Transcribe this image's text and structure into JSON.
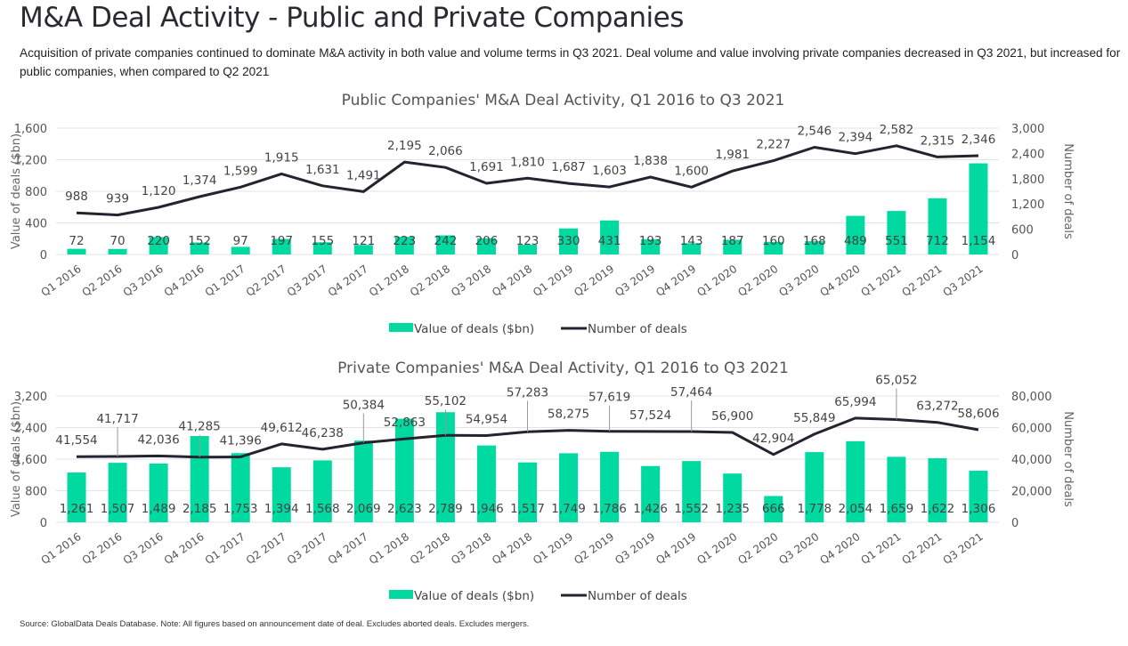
{
  "header": {
    "title": "M&A Deal Activity - Public and Private Companies",
    "subtitle": "Acquisition of private companies continued to dominate M&A activity in both value and volume terms in Q3 2021. Deal volume and value involving private companies decreased in Q3 2021, but increased for public companies, when compared to Q2 2021"
  },
  "source": "Source: GlobalData Deals Database. Note: All figures based on announcement date of deal. Excludes aborted deals. Excludes mergers.",
  "colors": {
    "bar": "#00D9A0",
    "line": "#24232F"
  },
  "chart_data": [
    {
      "type": "bar+line",
      "title": "Public Companies' M&A Deal Activity, Q1 2016 to Q3 2021",
      "categories": [
        "Q1 2016",
        "Q2 2016",
        "Q3 2016",
        "Q4 2016",
        "Q1 2017",
        "Q2 2017",
        "Q3 2017",
        "Q4 2017",
        "Q1 2018",
        "Q2 2018",
        "Q3 2018",
        "Q4 2018",
        "Q1 2019",
        "Q2 2019",
        "Q3 2019",
        "Q4 2019",
        "Q1 2020",
        "Q2 2020",
        "Q3 2020",
        "Q4 2020",
        "Q1 2021",
        "Q2 2021",
        "Q3 2021"
      ],
      "series": [
        {
          "name": "Value of deals ($bn)",
          "type": "bar",
          "axis": "left",
          "values": [
            72,
            70,
            220,
            152,
            97,
            197,
            155,
            121,
            223,
            242,
            206,
            123,
            330,
            431,
            193,
            143,
            187,
            160,
            168,
            489,
            551,
            712,
            1154
          ]
        },
        {
          "name": "Number of deals",
          "type": "line",
          "axis": "right",
          "values": [
            988,
            939,
            1120,
            1374,
            1599,
            1915,
            1631,
            1491,
            2195,
            2066,
            1691,
            1810,
            1687,
            1603,
            1838,
            1600,
            1981,
            2227,
            2546,
            2394,
            2582,
            2315,
            2346
          ]
        }
      ],
      "ylabel": "Value of deals ($bn)",
      "ylabel_right": "Number of deals",
      "ylim": [
        0,
        1600
      ],
      "yticks": [
        "0",
        "400",
        "800",
        "1,200",
        "1,600"
      ],
      "ylim_right": [
        0,
        3000
      ],
      "yticks_right": [
        "0",
        "600",
        "1,200",
        "1,800",
        "2,400",
        "3,000"
      ],
      "grid": true,
      "legend": "bottom"
    },
    {
      "type": "bar+line",
      "title": "Private Companies' M&A Deal Activity, Q1 2016 to Q3 2021",
      "categories": [
        "Q1 2016",
        "Q2 2016",
        "Q3 2016",
        "Q4 2016",
        "Q1 2017",
        "Q2 2017",
        "Q3 2017",
        "Q4 2017",
        "Q1 2018",
        "Q2 2018",
        "Q3 2018",
        "Q4 2018",
        "Q1 2019",
        "Q2 2019",
        "Q3 2019",
        "Q4 2019",
        "Q1 2020",
        "Q2 2020",
        "Q3 2020",
        "Q4 2020",
        "Q1 2021",
        "Q2 2021",
        "Q3 2021"
      ],
      "series": [
        {
          "name": "Value of deals ($bn)",
          "type": "bar",
          "axis": "left",
          "values": [
            1261,
            1507,
            1489,
            2185,
            1753,
            1394,
            1568,
            2069,
            2623,
            2789,
            1946,
            1517,
            1749,
            1786,
            1426,
            1552,
            1235,
            666,
            1778,
            2054,
            1659,
            1622,
            1306
          ]
        },
        {
          "name": "Number of deals",
          "type": "line",
          "axis": "right",
          "values": [
            41554,
            41717,
            42036,
            41285,
            41396,
            49612,
            46238,
            50384,
            52863,
            55102,
            54954,
            57283,
            58275,
            57619,
            57524,
            57464,
            56900,
            42904,
            55849,
            65994,
            65052,
            63272,
            58606
          ]
        }
      ],
      "ylabel": "Value of deals ($bn)",
      "ylabel_right": "Number of deals",
      "ylim": [
        0,
        3200
      ],
      "yticks": [
        "0",
        "800",
        "1,600",
        "2,400",
        "3,200"
      ],
      "ylim_right": [
        0,
        80000
      ],
      "yticks_right": [
        "0",
        "20,000",
        "40,000",
        "60,000",
        "80,000"
      ],
      "grid": true,
      "legend": "bottom"
    }
  ]
}
